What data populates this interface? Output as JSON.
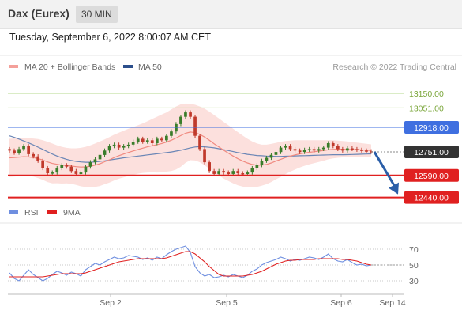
{
  "header": {
    "title": "Dax (Eurex)",
    "timeframe": "30 MIN",
    "timestamp": "Tuesday, September 6, 2022 8:00:07 AM CET"
  },
  "legend": {
    "items": [
      {
        "label": "MA 20 + Bollinger Bands",
        "color": "#f4a09a"
      },
      {
        "label": "MA 50",
        "color": "#2c4f8c"
      }
    ],
    "source": "Research © 2022 Trading Central"
  },
  "colors": {
    "candle_up": "#3a7d2a",
    "candle_down": "#c0392b",
    "bollinger": "#fbd5d2",
    "ma20": "#f08a80",
    "ma50": "#6b86b6",
    "resistance_green": "#b6d88c",
    "pivot_blue": "#3f6fe0",
    "support_red": "#e02020",
    "current_dark": "#333333",
    "arrow": "#2a5ea8"
  },
  "chart_data": [
    {
      "type": "candlestick",
      "title": "Dax (Eurex)",
      "x_ticks": [
        "Sep 2",
        "Sep 5",
        "Sep 6",
        "Sep 14"
      ],
      "ylim": [
        12330,
        13290
      ],
      "levels": [
        {
          "value": 13150.0,
          "label": "13150.00",
          "kind": "resistance"
        },
        {
          "value": 13051.0,
          "label": "13051.00",
          "kind": "resistance"
        },
        {
          "value": 12918.0,
          "label": "12918.00",
          "kind": "pivot"
        },
        {
          "value": 12751.0,
          "label": "12751.00",
          "kind": "current"
        },
        {
          "value": 12590.0,
          "label": "12590.00",
          "kind": "support"
        },
        {
          "value": 12440.0,
          "label": "12440.00",
          "kind": "support"
        }
      ],
      "close": [
        12760,
        12745,
        12770,
        12790,
        12735,
        12720,
        12690,
        12640,
        12605,
        12610,
        12640,
        12660,
        12650,
        12620,
        12600,
        12610,
        12650,
        12680,
        12700,
        12730,
        12760,
        12790,
        12800,
        12780,
        12790,
        12800,
        12820,
        12840,
        12820,
        12830,
        12810,
        12840,
        12830,
        12860,
        12890,
        12940,
        12990,
        13020,
        12990,
        12860,
        12770,
        12680,
        12620,
        12600,
        12620,
        12610,
        12600,
        12620,
        12605,
        12600,
        12610,
        12640,
        12660,
        12690,
        12710,
        12730,
        12750,
        12780,
        12790,
        12770,
        12760,
        12750,
        12765,
        12770,
        12760,
        12770,
        12780,
        12810,
        12790,
        12770,
        12760,
        12775,
        12770,
        12765,
        12760,
        12755,
        12751
      ],
      "ma20": [
        12710,
        12712,
        12715,
        12718,
        12716,
        12712,
        12705,
        12695,
        12682,
        12672,
        12666,
        12660,
        12657,
        12654,
        12650,
        12647,
        12648,
        12652,
        12660,
        12670,
        12683,
        12697,
        12712,
        12725,
        12736,
        12747,
        12757,
        12767,
        12776,
        12785,
        12793,
        12800,
        12808,
        12818,
        12830,
        12845,
        12862,
        12878,
        12886,
        12882,
        12870,
        12852,
        12830,
        12806,
        12784,
        12762,
        12742,
        12722,
        12704,
        12688,
        12675,
        12665,
        12660,
        12660,
        12665,
        12675,
        12688,
        12700,
        12712,
        12722,
        12730,
        12737,
        12743,
        12748,
        12752,
        12756,
        12760,
        12765,
        12768,
        12769,
        12769,
        12768,
        12767,
        12766,
        12764,
        12762,
        12760
      ],
      "bb_upper": [
        12840,
        12842,
        12844,
        12846,
        12845,
        12842,
        12838,
        12830,
        12820,
        12808,
        12795,
        12785,
        12778,
        12775,
        12775,
        12778,
        12785,
        12795,
        12808,
        12822,
        12836,
        12852,
        12868,
        12882,
        12895,
        12908,
        12920,
        12932,
        12945,
        12960,
        12975,
        12990,
        13005,
        13020,
        13040,
        13060,
        13075,
        13080,
        13078,
        13072,
        13060,
        13045,
        13025,
        13002,
        12978,
        12955,
        12932,
        12908,
        12885,
        12862,
        12840,
        12822,
        12808,
        12800,
        12800,
        12805,
        12812,
        12820,
        12825,
        12828,
        12830,
        12830,
        12830,
        12830,
        12830,
        12830,
        12830,
        12830,
        12830,
        12828,
        12825,
        12822,
        12818,
        12814,
        12810,
        12806,
        12802
      ],
      "bb_lower": [
        12580,
        12582,
        12586,
        12590,
        12587,
        12582,
        12572,
        12560,
        12545,
        12536,
        12537,
        12535,
        12536,
        12533,
        12525,
        12516,
        12511,
        12509,
        12512,
        12518,
        12530,
        12542,
        12556,
        12568,
        12577,
        12586,
        12594,
        12602,
        12607,
        12610,
        12611,
        12610,
        12611,
        12616,
        12620,
        12630,
        12649,
        12676,
        12694,
        12692,
        12680,
        12659,
        12635,
        12610,
        12590,
        12569,
        12552,
        12536,
        12523,
        12514,
        12510,
        12508,
        12512,
        12520,
        12530,
        12545,
        12564,
        12580,
        12599,
        12616,
        12630,
        12644,
        12656,
        12666,
        12674,
        12682,
        12690,
        12700,
        12706,
        12710,
        12713,
        12714,
        12716,
        12718,
        12718,
        12718,
        12718
      ],
      "ma50": [
        12860,
        12850,
        12838,
        12825,
        12812,
        12798,
        12783,
        12768,
        12752,
        12736,
        12722,
        12710,
        12700,
        12692,
        12686,
        12682,
        12680,
        12680,
        12682,
        12686,
        12690,
        12695,
        12700,
        12705,
        12710,
        12714,
        12718,
        12722,
        12726,
        12730,
        12734,
        12738,
        12742,
        12746,
        12750,
        12756,
        12762,
        12770,
        12778,
        12784,
        12786,
        12785,
        12782,
        12778,
        12772,
        12766,
        12760,
        12753,
        12746,
        12740,
        12734,
        12730,
        12726,
        12724,
        12722,
        12721,
        12720,
        12720,
        12721,
        12722,
        12723,
        12724,
        12725,
        12726,
        12727,
        12728,
        12729,
        12730,
        12731,
        12731,
        12731,
        12732,
        12733,
        12734,
        12735,
        12736,
        12737
      ]
    },
    {
      "type": "line",
      "title": "RSI",
      "series": [
        {
          "name": "RSI",
          "color": "#6f8fe0",
          "values": [
            40,
            33,
            30,
            37,
            44,
            38,
            34,
            30,
            33,
            38,
            42,
            40,
            37,
            41,
            39,
            36,
            44,
            48,
            52,
            50,
            54,
            57,
            60,
            58,
            59,
            62,
            61,
            60,
            57,
            59,
            56,
            60,
            58,
            63,
            67,
            70,
            72,
            74,
            66,
            48,
            40,
            36,
            38,
            34,
            35,
            37,
            35,
            38,
            36,
            34,
            37,
            42,
            45,
            50,
            53,
            55,
            57,
            60,
            58,
            55,
            57,
            56,
            58,
            60,
            59,
            57,
            60,
            64,
            58,
            55,
            54,
            57,
            53,
            50,
            51,
            49,
            50
          ]
        },
        {
          "name": "9MA",
          "color": "#e02020",
          "values": [
            35,
            35,
            35,
            35,
            35,
            35,
            35,
            35,
            36,
            37,
            38,
            39,
            39,
            39,
            39,
            39,
            40,
            42,
            44,
            46,
            48,
            50,
            52,
            54,
            55,
            56,
            57,
            58,
            58,
            58,
            58,
            58,
            58,
            59,
            61,
            63,
            65,
            67,
            67,
            64,
            59,
            54,
            48,
            43,
            38,
            36,
            36,
            36,
            36,
            36,
            37,
            38,
            40,
            42,
            45,
            48,
            51,
            53,
            55,
            56,
            56,
            57,
            57,
            57,
            57,
            58,
            58,
            58,
            58,
            58,
            57,
            57,
            56,
            55,
            53,
            51,
            50
          ]
        }
      ],
      "y_ticks": [
        70,
        50,
        30
      ],
      "ylim": [
        15,
        85
      ]
    }
  ]
}
